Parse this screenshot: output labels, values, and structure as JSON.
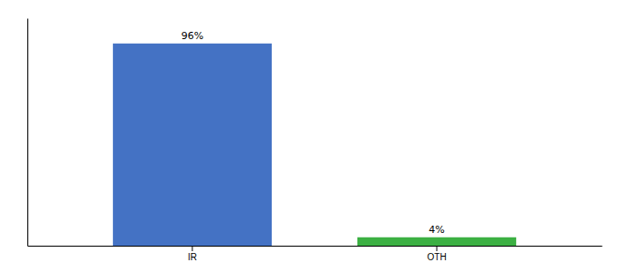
{
  "chart_data": {
    "type": "bar",
    "categories": [
      "IR",
      "OTH"
    ],
    "values": [
      96,
      4
    ],
    "value_labels": [
      "96%",
      "4%"
    ],
    "colors": [
      "#4472C4",
      "#3CB043"
    ],
    "ylim": [
      0,
      108
    ],
    "data_labels": true,
    "tick_labels": "x"
  }
}
